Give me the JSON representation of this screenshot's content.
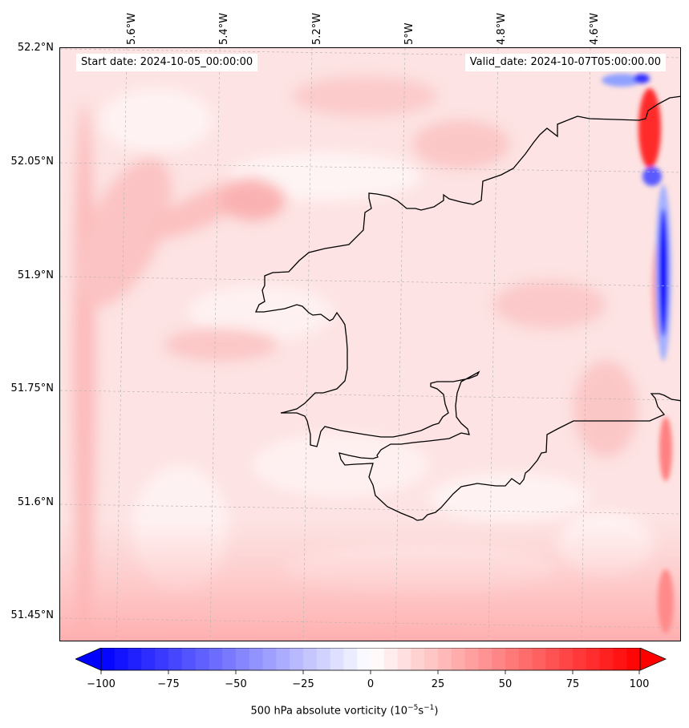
{
  "map": {
    "start_date": "Start date: 2024-10-05_00:00:00",
    "valid_date": "Valid_date: 2024-10-07T05:00:00.00",
    "lon_labels": [
      "5.6°W",
      "5.4°W",
      "5.2°W",
      "5°W",
      "4.8°W",
      "4.6°W"
    ],
    "lat_labels": [
      "52.2°N",
      "52.05°N",
      "51.9°N",
      "51.75°N",
      "51.6°N",
      "51.45°N"
    ],
    "field_colors": {
      "background": "#fde6e6",
      "positive_strong": "#ff0000",
      "negative_strong": "#0000ff"
    }
  },
  "colorbar": {
    "ticks": [
      "−100",
      "−75",
      "−50",
      "−25",
      "0",
      "25",
      "50",
      "75",
      "100"
    ],
    "label_main": "500 hPa absolute vorticity (10",
    "label_exp1": "−5",
    "label_mid": "s",
    "label_exp2": "−1",
    "label_end": ")",
    "min": -100,
    "max": 100,
    "cmap": "bwr"
  }
}
